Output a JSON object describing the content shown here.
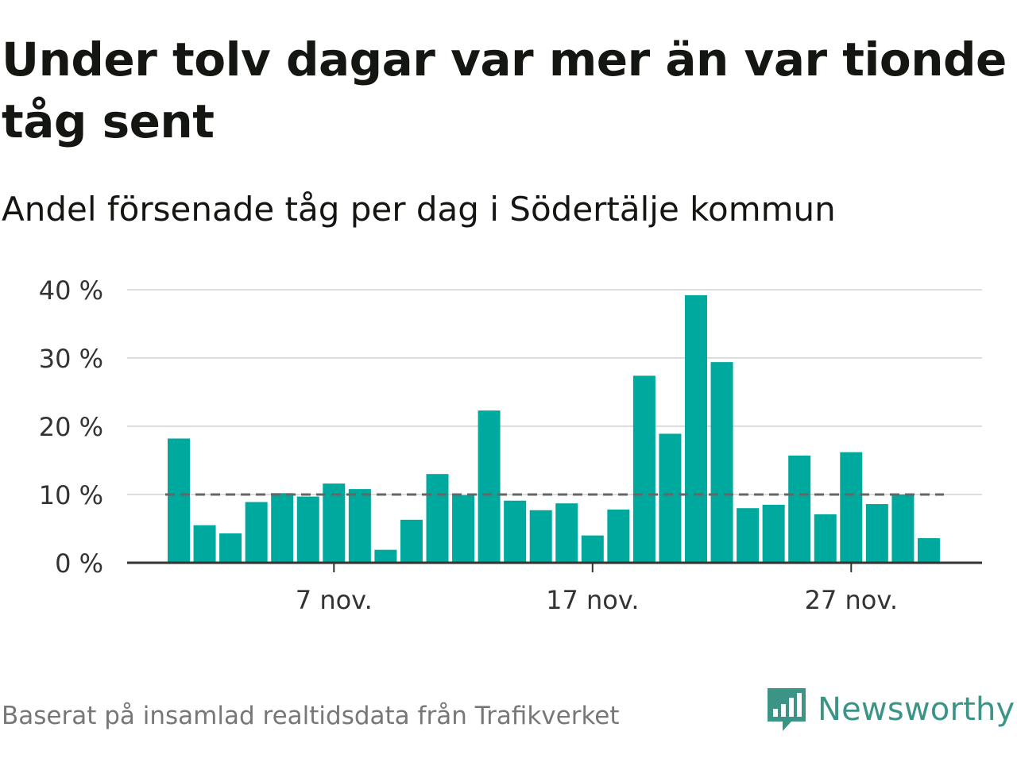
{
  "header": {
    "title": "Under tolv dagar var mer än var tionde tåg sent",
    "subtitle": "Andel försenade tåg per dag i Södertälje kommun"
  },
  "footer": {
    "source": "Baserat på insamlad realtidsdata från Trafikverket",
    "brand": "Newsworthy",
    "brand_icon": "newsworthy-logo-icon"
  },
  "colors": {
    "bar": "#00a99d",
    "reference_line": "#666666",
    "grid": "#dddddd",
    "axis": "#333333",
    "brand": "#3c9486"
  },
  "chart_data": {
    "type": "bar",
    "title": "",
    "xlabel": "",
    "ylabel": "",
    "x": [
      "1 nov.",
      "2 nov.",
      "3 nov.",
      "4 nov.",
      "5 nov.",
      "6 nov.",
      "7 nov.",
      "8 nov.",
      "9 nov.",
      "10 nov.",
      "11 nov.",
      "12 nov.",
      "13 nov.",
      "14 nov.",
      "15 nov.",
      "16 nov.",
      "17 nov.",
      "18 nov.",
      "19 nov.",
      "20 nov.",
      "21 nov.",
      "22 nov.",
      "23 nov.",
      "24 nov.",
      "25 nov.",
      "26 nov.",
      "27 nov.",
      "28 nov.",
      "29 nov.",
      "30 nov."
    ],
    "values": [
      18.2,
      5.5,
      4.3,
      8.9,
      10.2,
      9.7,
      11.6,
      10.8,
      1.9,
      6.3,
      13.0,
      9.9,
      22.3,
      9.1,
      7.7,
      8.7,
      4.0,
      7.8,
      27.4,
      18.9,
      39.2,
      29.4,
      8.0,
      8.5,
      15.7,
      7.1,
      16.2,
      8.6,
      10.0,
      3.6
    ],
    "reference_line": {
      "value": 10
    },
    "ylim": [
      0,
      40
    ],
    "yticks": [
      0,
      10,
      20,
      30,
      40
    ],
    "ytick_labels": [
      "0 %",
      "10 %",
      "20 %",
      "30 %",
      "40 %"
    ],
    "xtick_labels": [
      {
        "label": "7 nov.",
        "day": 7
      },
      {
        "label": "17 nov.",
        "day": 17
      },
      {
        "label": "27 nov.",
        "day": 27
      }
    ],
    "grid": true,
    "legend": "none"
  }
}
